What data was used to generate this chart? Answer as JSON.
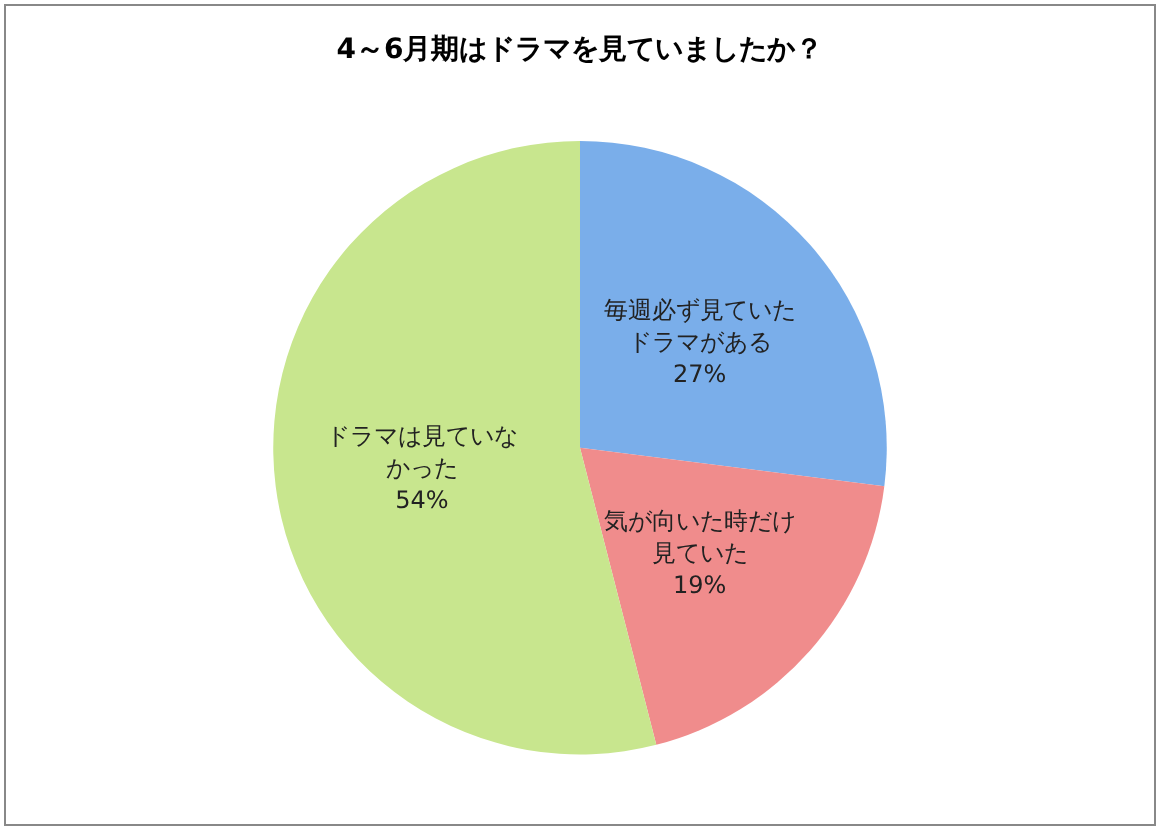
{
  "chart_data": {
    "type": "pie",
    "title": "4～6月期はドラマを見ていましたか？",
    "categories": [
      "毎週必ず見ていたドラマがある",
      "気が向いた時だけ見ていた",
      "ドラマは見ていなかった"
    ],
    "values": [
      27,
      19,
      54
    ],
    "value_labels": [
      "27%",
      "19%",
      "54%"
    ],
    "colors": [
      "#7aaeea",
      "#f08c8c",
      "#c8e68e"
    ],
    "legend": false
  }
}
